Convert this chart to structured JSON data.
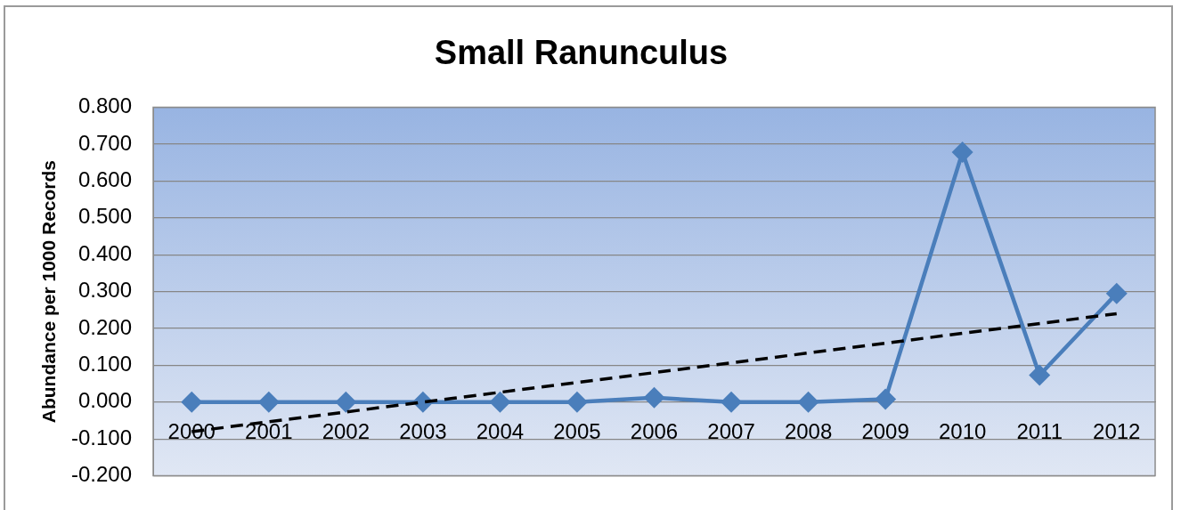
{
  "chart_data": {
    "type": "line",
    "title": "Small Ranunculus",
    "ylabel": "Abundance per 1000 Records",
    "x": [
      2000,
      2001,
      2002,
      2003,
      2004,
      2005,
      2006,
      2007,
      2008,
      2009,
      2010,
      2011,
      2012
    ],
    "series": [
      {
        "color": "#4a7ebb",
        "marker": "diamond",
        "line_style": "solid",
        "values": [
          0,
          0,
          0,
          0,
          0,
          0,
          0.012,
          0,
          0,
          0.008,
          0.678,
          0.073,
          0.295
        ]
      },
      {
        "type": "line",
        "x": [
          2000,
          2012
        ],
        "values": [
          -0.08,
          0.24
        ],
        "color": "#000000",
        "marker": "none",
        "line_style": "dashed"
      }
    ],
    "xlim": [
      1999.5,
      2012.5
    ],
    "xticks": [
      2000,
      2001,
      2002,
      2003,
      2004,
      2005,
      2006,
      2007,
      2008,
      2009,
      2010,
      2011,
      2012
    ],
    "ylim": [
      -0.2,
      0.8
    ],
    "yticks": [
      {
        "value": -0.2,
        "label": "-0.200"
      },
      {
        "value": -0.1,
        "label": "-0.100"
      },
      {
        "value": 0,
        "label": "0.000"
      },
      {
        "value": 0.1,
        "label": "0.100"
      },
      {
        "value": 0.2,
        "label": "0.200"
      },
      {
        "value": 0.3,
        "label": "0.300"
      },
      {
        "value": 0.4,
        "label": "0.400"
      },
      {
        "value": 0.5,
        "label": "0.500"
      },
      {
        "value": 0.6,
        "label": "0.600"
      },
      {
        "value": 0.7,
        "label": "0.700"
      },
      {
        "value": 0.8,
        "label": "0.800"
      }
    ],
    "grid": "y",
    "legend": false
  }
}
